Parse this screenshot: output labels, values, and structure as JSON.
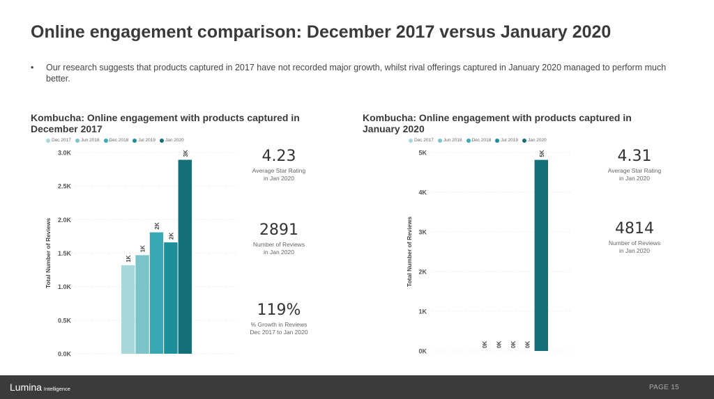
{
  "title": "Online engagement comparison: December 2017 versus January 2020",
  "bullet": "Our research suggests that products captured in 2017 have not recorded major growth, whilst rival offerings captured in January 2020 managed to perform much better.",
  "bullet_symbol": "•",
  "legend": [
    {
      "label": "Dec 2017",
      "color": "#a8d8dc"
    },
    {
      "label": "Jun 2018",
      "color": "#7cc3c9"
    },
    {
      "label": "Dec 2018",
      "color": "#38a9b4"
    },
    {
      "label": "Jul 2019",
      "color": "#1b8f9a"
    },
    {
      "label": "Jan 2020",
      "color": "#146f78"
    }
  ],
  "chart_data": [
    {
      "type": "bar",
      "title": "Kombucha: Online engagement with products captured in December 2017",
      "ylabel": "Total Number of Reviews",
      "categories": [
        "Dec 2017",
        "Jun 2018",
        "Dec 2018",
        "Jul 2019",
        "Jan 2020"
      ],
      "values": [
        1320,
        1470,
        1810,
        1660,
        2891
      ],
      "data_labels": [
        "1K",
        "1K",
        "2K",
        "2K",
        "3K"
      ],
      "yticks": [
        "0.0K",
        "0.5K",
        "1.0K",
        "1.5K",
        "2.0K",
        "2.5K",
        "3.0K"
      ],
      "ylim": [
        0,
        3000
      ],
      "legend": "top-left",
      "grid": true
    },
    {
      "type": "bar",
      "title": "Kombucha: Online engagement with products captured in January 2020",
      "ylabel": "Total Number of Reviews",
      "categories": [
        "Dec 2017",
        "Jun 2018",
        "Dec 2018",
        "Jul 2019",
        "Jan 2020"
      ],
      "values": [
        0,
        0,
        0,
        0,
        4814
      ],
      "data_labels": [
        "0K",
        "0K",
        "0K",
        "0K",
        "5K"
      ],
      "yticks": [
        "0K",
        "1K",
        "2K",
        "3K",
        "4K",
        "5K"
      ],
      "ylim": [
        0,
        5000
      ],
      "legend": "top-left",
      "grid": true
    }
  ],
  "kpis_left": [
    {
      "value": "4.23",
      "label1": "Average Star Rating",
      "label2": "in Jan 2020"
    },
    {
      "value": "2891",
      "label1": "Number of Reviews",
      "label2": "in Jan 2020"
    },
    {
      "value": "119%",
      "label1": "% Growth in Reviews",
      "label2": "Dec 2017 to Jan 2020"
    }
  ],
  "kpis_right": [
    {
      "value": "4.31",
      "label1": "Average Star Rating",
      "label2": "in Jan 2020"
    },
    {
      "value": "4814",
      "label1": "Number of Reviews",
      "label2": "in Jan 2020"
    }
  ],
  "footer": {
    "logo": "Lumina",
    "logo_sub": "Intelligence",
    "page": "PAGE 15"
  }
}
